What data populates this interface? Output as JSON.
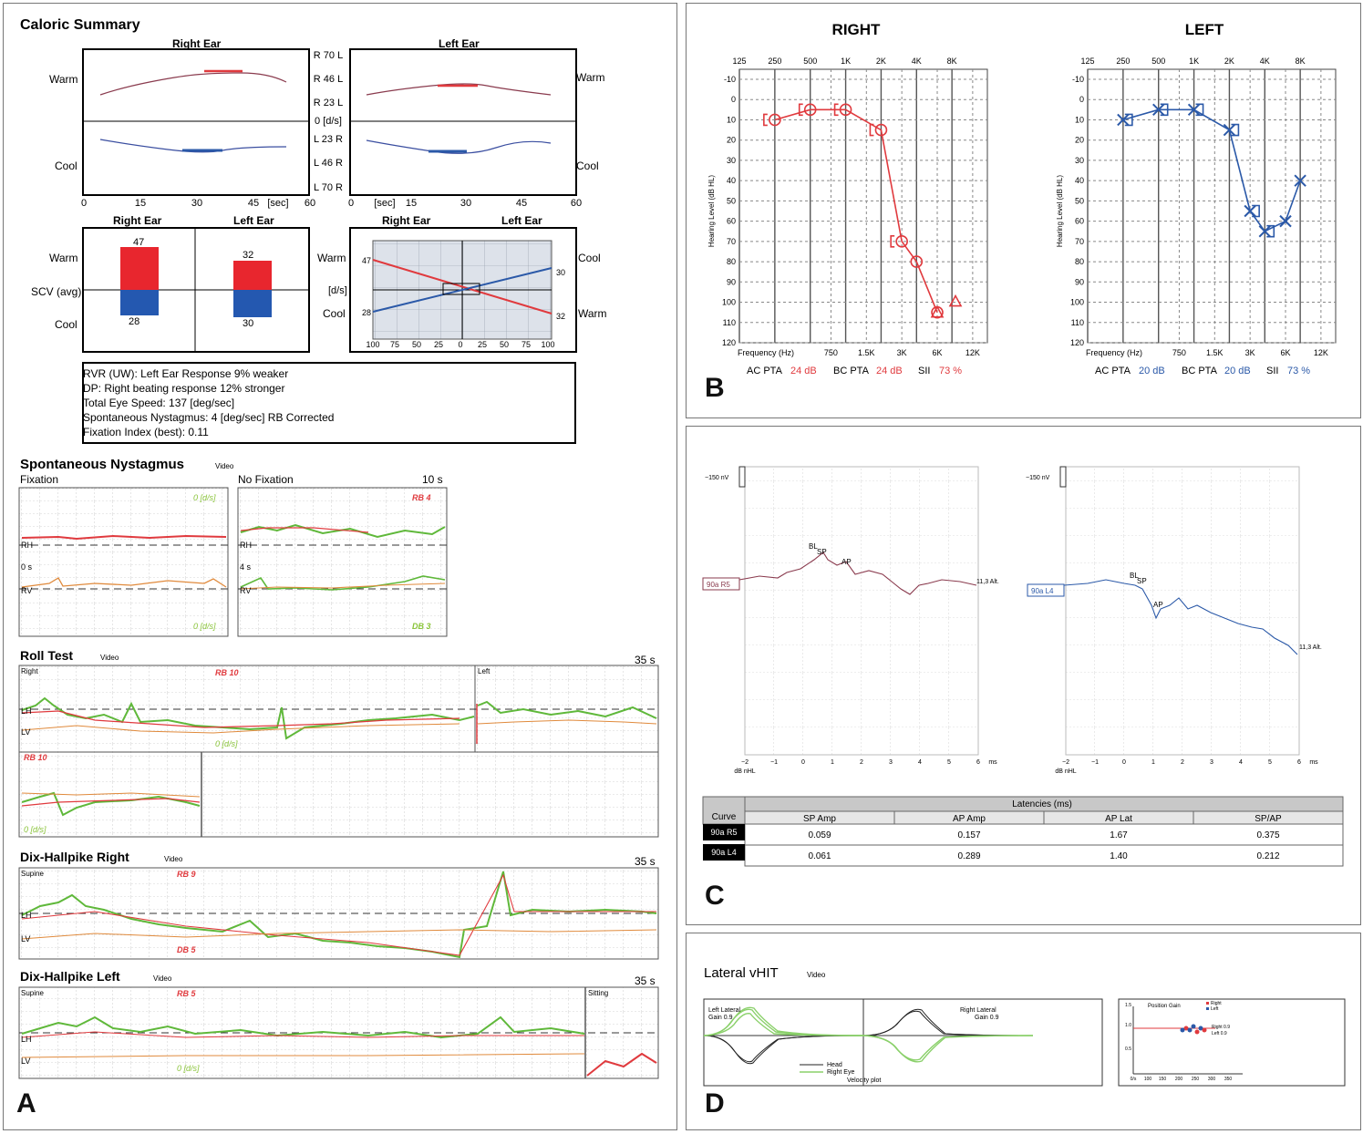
{
  "panels": {
    "a": "A",
    "b": "B",
    "c": "C",
    "d": "D"
  },
  "colors": {
    "red": "#e03a3e",
    "blue": "#2b59a8",
    "green": "#5fb83a",
    "orange": "#e08a3c",
    "maroon": "#8a3b4e",
    "gridbg": "#dde2ea"
  },
  "caloric": {
    "title": "Caloric Summary",
    "right_ear": "Right Ear",
    "left_ear": "Left Ear",
    "warm": "Warm",
    "cool": "Cool",
    "mid_labels": [
      "R 70 L",
      "R 46 L",
      "R 23 L",
      "0 [d/s]",
      "L 23 R",
      "L 46 R",
      "L 70 R"
    ],
    "x_ticks_right": [
      "0",
      "15",
      "30",
      "45",
      "[sec]",
      "60"
    ],
    "x_ticks_left": [
      "0",
      "[sec]",
      "15",
      "30",
      "45",
      "60"
    ],
    "scv_label": "SCV (avg)",
    "bars": {
      "right_warm": "47",
      "right_cool": "28",
      "left_warm": "32",
      "left_cool": "30"
    },
    "butterfly": {
      "ds": "[d/s]",
      "v47": "47",
      "v28": "28",
      "v30": "30",
      "v32": "32",
      "cool": "Cool",
      "warm": "Warm",
      "x_ticks": [
        "100",
        "75",
        "50",
        "25",
        "0",
        "25",
        "50",
        "75",
        "100"
      ]
    },
    "summary": [
      "RVR (UW): Left Ear Response 9% weaker",
      "DP: Right beating response 12% stronger",
      "Total Eye Speed: 137 [deg/sec]",
      "Spontaneous Nystagmus:  4 [deg/sec] RB  Corrected",
      "Fixation Index (best): 0.11"
    ]
  },
  "nystagmus": {
    "title": "Spontaneous Nystagmus",
    "video": "Video",
    "fixation": "Fixation",
    "no_fixation": "No Fixation",
    "time": "10 s",
    "f_top": "0 [d/s]",
    "f_bottom": "0 [d/s]",
    "nf_top": "RB 4",
    "nf_bottom": "DB 3",
    "rh": "RH",
    "rv": "RV",
    "t0": "0 s",
    "t4": "4 s"
  },
  "roll": {
    "title": "Roll Test",
    "video": "Video",
    "time": "35 s",
    "right": "Right",
    "left": "Left",
    "rb10a": "RB 10",
    "rb10b": "RB 10",
    "lh": "LH",
    "lv": "LV",
    "ds": "0 [d/s]",
    "ds2": "0 [d/s]"
  },
  "dix_right": {
    "title": "Dix-Hallpike Right",
    "video": "Video",
    "time": "35 s",
    "supine": "Supine",
    "rb": "RB 9",
    "db": "DB 5",
    "lh": "LH",
    "lv": "LV"
  },
  "dix_left": {
    "title": "Dix-Hallpike Left",
    "video": "Video",
    "time": "35 s",
    "supine": "Supine",
    "rb": "RB 5",
    "sitting": "Sitting",
    "ds": "0 [d/s]",
    "lh": "LH",
    "lv": "LV"
  },
  "audiogram": {
    "right_title": "RIGHT",
    "left_title": "LEFT",
    "freq_top": [
      "125",
      "250",
      "500",
      "1K",
      "2K",
      "4K",
      "8K"
    ],
    "freq_bottom": [
      "Frequency  (Hz)",
      "750",
      "1.5K",
      "3K",
      "6K",
      "12K"
    ],
    "y_ticks": [
      "-10",
      "0",
      "10",
      "20",
      "30",
      "40",
      "50",
      "60",
      "70",
      "80",
      "90",
      "100",
      "110",
      "120"
    ],
    "ylabel": "Hearing Level (dB HL)",
    "right_pta": {
      "ac": "AC PTA",
      "ac_v": "24 dB",
      "bc": "BC PTA",
      "bc_v": "24 dB",
      "sii": "SII",
      "sii_v": "73 %"
    },
    "left_pta": {
      "ac": "AC PTA",
      "ac_v": "20 dB",
      "bc": "BC PTA",
      "bc_v": "20 dB",
      "sii": "SII",
      "sii_v": "73 %"
    }
  },
  "ecog": {
    "scale": "−150 nV",
    "right_tag": "90a R5",
    "left_tag": "90a L4",
    "bl": "BL",
    "sp": "SP",
    "ap": "AP",
    "alt": "11,3 Alt.",
    "x_ticks": [
      "−2",
      "−1",
      "0",
      "1",
      "2",
      "3",
      "4",
      "5",
      "6"
    ],
    "ms": "ms",
    "dbnhl": "dB nHL",
    "table": {
      "latencies": "Latencies (ms)",
      "headers": [
        "Curve",
        "SP Amp",
        "AP Amp",
        "AP Lat",
        "SP/AP"
      ],
      "rows": [
        [
          "90a R5",
          "0.059",
          "0.157",
          "1.67",
          "0.375"
        ],
        [
          "90a L4",
          "0.061",
          "0.289",
          "1.40",
          "0.212"
        ]
      ]
    }
  },
  "vhit": {
    "title": "Lateral vHIT",
    "video": "Video",
    "left_lateral": "Left Lateral",
    "left_gain": "Gain 0.9",
    "right_lateral": "Right Lateral",
    "right_gain": "Gain 0.9",
    "legend_head": "Head",
    "legend_eye": "Right Eye",
    "velocity": "Velocity plot",
    "position_gain": "Position Gain",
    "pg_right": "Right",
    "pg_left": "Left",
    "pg_right_val": "Right 0.9",
    "pg_left_val": "Left 0.9",
    "pg_y": [
      "1.5",
      "1.0",
      "0.5"
    ],
    "pg_x": [
      "0/s",
      "100",
      "150",
      "200",
      "250",
      "300",
      "350"
    ]
  },
  "chart_data": [
    {
      "type": "line",
      "title": "RIGHT",
      "xlabel": "Frequency (Hz)",
      "ylabel": "Hearing Level (dB HL)",
      "ylim": [
        -10,
        120
      ],
      "x": [
        250,
        500,
        1000,
        2000,
        3000,
        4000,
        6000
      ],
      "series": [
        {
          "name": "AC",
          "values": [
            10,
            5,
            5,
            15,
            70,
            80,
            105
          ]
        },
        {
          "name": "BC",
          "values": [
            10,
            5,
            5,
            15,
            70,
            null,
            100
          ]
        }
      ]
    },
    {
      "type": "line",
      "title": "LEFT",
      "xlabel": "Frequency (Hz)",
      "ylabel": "Hearing Level (dB HL)",
      "ylim": [
        -10,
        120
      ],
      "x": [
        250,
        500,
        1000,
        2000,
        3000,
        4000,
        6000,
        8000
      ],
      "series": [
        {
          "name": "AC",
          "values": [
            10,
            5,
            5,
            15,
            55,
            65,
            60,
            40
          ]
        },
        {
          "name": "BC",
          "values": [
            10,
            5,
            5,
            15,
            55,
            65,
            null,
            null
          ]
        }
      ]
    },
    {
      "type": "bar",
      "title": "Caloric SCV (avg)",
      "categories": [
        "Right Ear",
        "Left Ear"
      ],
      "series": [
        {
          "name": "Warm",
          "values": [
            47,
            32
          ]
        },
        {
          "name": "Cool",
          "values": [
            28,
            30
          ]
        }
      ]
    },
    {
      "type": "table",
      "title": "Latencies (ms)",
      "columns": [
        "Curve",
        "SP Amp",
        "AP Amp",
        "AP Lat",
        "SP/AP"
      ],
      "rows": [
        [
          "90a R5",
          0.059,
          0.157,
          1.67,
          0.375
        ],
        [
          "90a L4",
          0.061,
          0.289,
          1.4,
          0.212
        ]
      ]
    }
  ]
}
